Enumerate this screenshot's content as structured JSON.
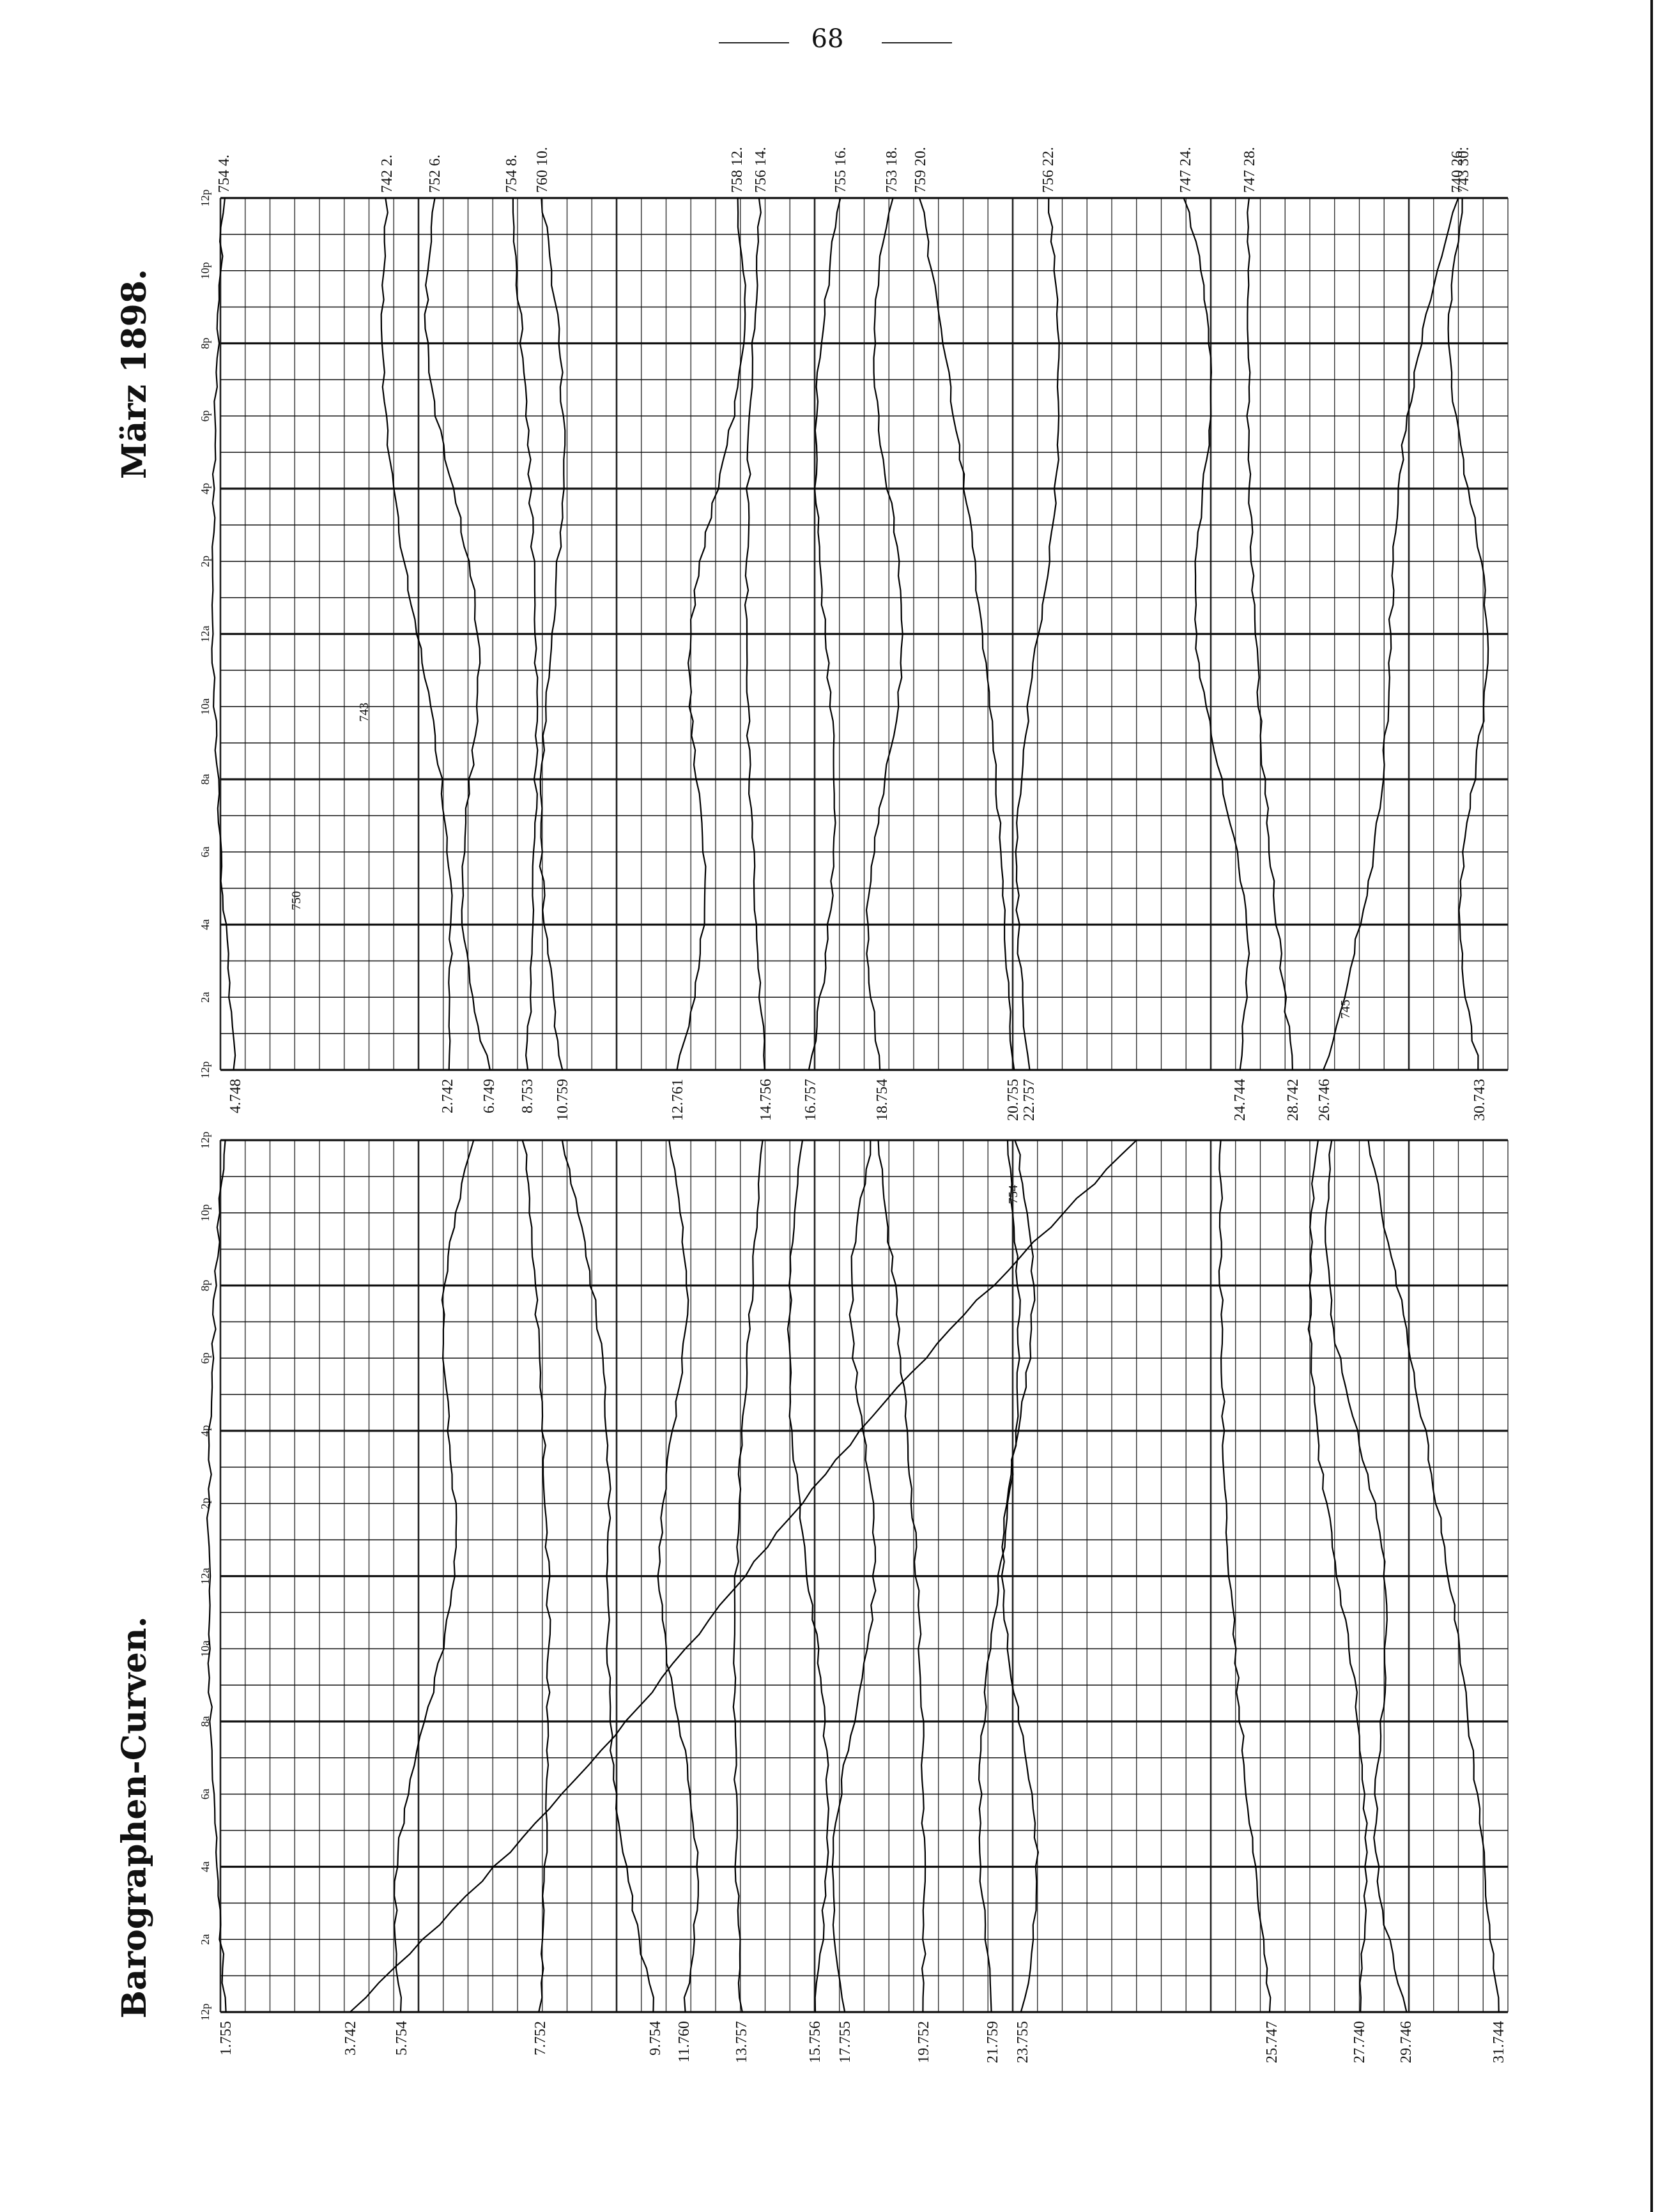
{
  "page": {
    "page_number": "68",
    "title_top": "März 1898.",
    "title_bottom": "Barographen-Curven."
  },
  "chart_data": [
    {
      "type": "line",
      "title": "März 1898.",
      "x_tick_labels": [
        "12p",
        "2a",
        "4a",
        "6a",
        "8a",
        "10a",
        "12a",
        "2p",
        "4p",
        "6p",
        "8p",
        "10p",
        "12p"
      ],
      "series": [
        {
          "name": "4.",
          "start_label": "4.748",
          "end_label": "754 4."
        },
        {
          "name": "2.",
          "start_label": "2.742",
          "end_label": "742 2."
        },
        {
          "name": "6.",
          "start_label": "6.749",
          "end_label": "752 6."
        },
        {
          "name": "8.",
          "start_label": "8.753",
          "end_label": "754 8."
        },
        {
          "name": "10.",
          "start_label": "10.759",
          "end_label": "760 10."
        },
        {
          "name": "12.",
          "start_label": "12.761",
          "end_label": "758 12."
        },
        {
          "name": "14.",
          "start_label": "14.756",
          "end_label": "756 14."
        },
        {
          "name": "16.",
          "start_label": "16.757",
          "end_label": "755 16."
        },
        {
          "name": "18.",
          "start_label": "18.754",
          "end_label": "753 18."
        },
        {
          "name": "20.",
          "start_label": "20.755",
          "end_label": "759 20."
        },
        {
          "name": "22.",
          "start_label": "22.757",
          "end_label": "756 22."
        },
        {
          "name": "24.",
          "start_label": "24.744",
          "end_label": "747 24."
        },
        {
          "name": "28.",
          "start_label": "28.742",
          "end_label": "747 28."
        },
        {
          "name": "26.",
          "start_label": "26.746",
          "end_label": "740 26."
        },
        {
          "name": "30.",
          "start_label": "30.743",
          "end_label": "743 30."
        }
      ],
      "annotations": [
        "750",
        "743",
        "745"
      ]
    },
    {
      "type": "line",
      "title": "Barographen-Curven.",
      "x_tick_labels": [
        "12p",
        "2a",
        "4a",
        "6a",
        "8a",
        "10a",
        "12a",
        "2p",
        "4p",
        "6p",
        "8p",
        "10p",
        "12p"
      ],
      "series": [
        {
          "name": "1.",
          "start_label": "1.755"
        },
        {
          "name": "3.",
          "start_label": "3.742"
        },
        {
          "name": "5.",
          "start_label": "5.754"
        },
        {
          "name": "7.",
          "start_label": "7.752"
        },
        {
          "name": "9.",
          "start_label": "9.754"
        },
        {
          "name": "11.",
          "start_label": "11.760"
        },
        {
          "name": "13.",
          "start_label": "13.757"
        },
        {
          "name": "15.",
          "start_label": "15.756"
        },
        {
          "name": "17.",
          "start_label": "17.755"
        },
        {
          "name": "19.",
          "start_label": "19.752"
        },
        {
          "name": "21.",
          "start_label": "21.759"
        },
        {
          "name": "23.",
          "start_label": "23.755"
        },
        {
          "name": "25.",
          "start_label": "25.747"
        },
        {
          "name": "27.",
          "start_label": "27.740"
        },
        {
          "name": "29.",
          "start_label": "29.746"
        },
        {
          "name": "31.",
          "start_label": "31.744"
        }
      ],
      "annotations": [
        "754"
      ]
    }
  ]
}
